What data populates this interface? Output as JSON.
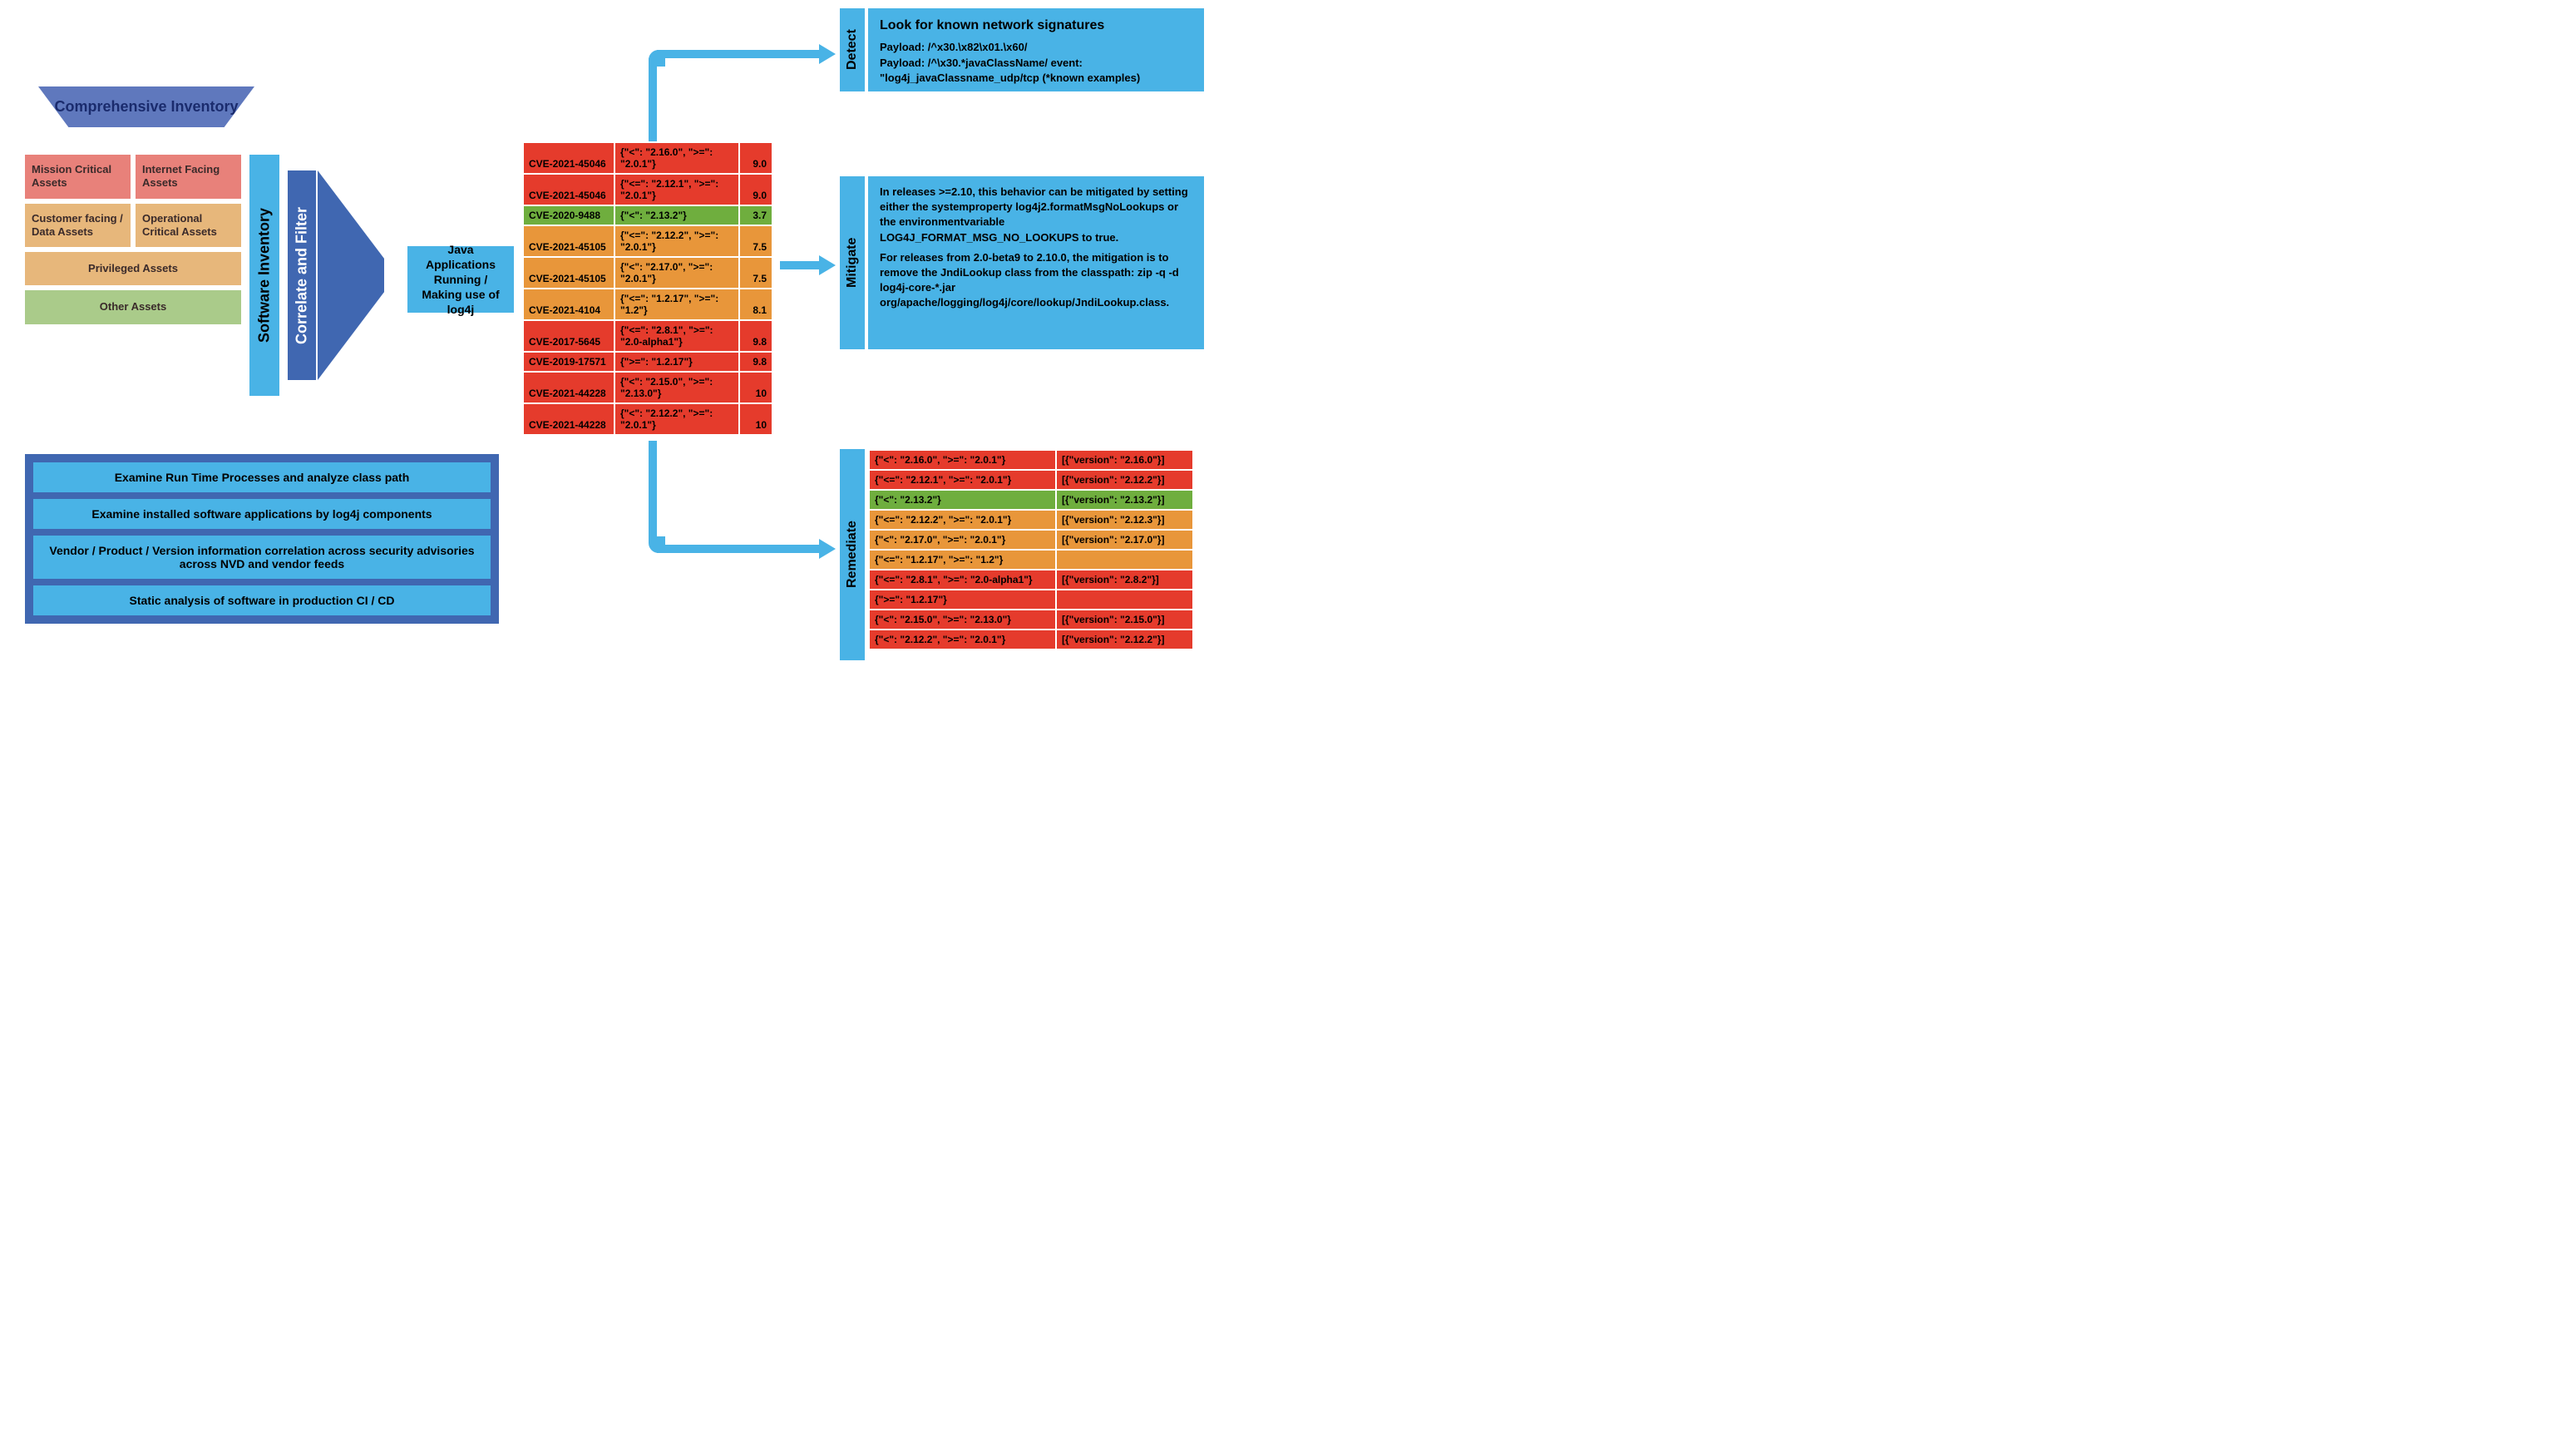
{
  "colors": {
    "blue_dark": "#4067b1",
    "blue_light": "#49b3e6",
    "red": "#e53b2c",
    "orange": "#e8963a",
    "green_row": "#6fae3e",
    "tile_red": "#e8817a",
    "tile_tan": "#e7b77b",
    "tile_green": "#aacb8a"
  },
  "trapezoid": "Comprehensive Inventory",
  "assets": {
    "a1": "Mission Critical Assets",
    "a2": "Internet Facing Assets",
    "a3": "Customer facing / Data Assets",
    "a4": "Operational Critical Assets",
    "a5": "Privileged Assets",
    "a6": "Other Assets"
  },
  "vbars": {
    "software": "Software Inventory",
    "correlate": "Correlate and Filter",
    "detect": "Detect",
    "mitigate": "Mitigate",
    "remediate": "Remediate"
  },
  "java_box": "Java Applications Running / Making use of log4j",
  "steps": {
    "s1": "Examine Run Time Processes and analyze class path",
    "s2": "Examine installed software applications by log4j components",
    "s3": "Vendor / Product / Version information correlation across security advisories across NVD and vendor feeds",
    "s4": "Static analysis of software in production CI / CD"
  },
  "cve_rows": [
    {
      "cls": "red",
      "id": "CVE-2021-45046",
      "ver": "{\"<\": \"2.16.0\", \">=\": \"2.0.1\"}",
      "score": "9.0"
    },
    {
      "cls": "red",
      "id": "CVE-2021-45046",
      "ver": "{\"<=\": \"2.12.1\", \">=\": \"2.0.1\"}",
      "score": "9.0"
    },
    {
      "cls": "green",
      "id": "CVE-2020-9488",
      "ver": "{\"<\": \"2.13.2\"}",
      "score": "3.7"
    },
    {
      "cls": "orange",
      "id": "CVE-2021-45105",
      "ver": "{\"<=\": \"2.12.2\", \">=\": \"2.0.1\"}",
      "score": "7.5"
    },
    {
      "cls": "orange",
      "id": "CVE-2021-45105",
      "ver": "{\"<\": \"2.17.0\", \">=\": \"2.0.1\"}",
      "score": "7.5"
    },
    {
      "cls": "orange",
      "id": "CVE-2021-4104",
      "ver": "{\"<=\": \"1.2.17\", \">=\": \"1.2\"}",
      "score": "8.1"
    },
    {
      "cls": "red",
      "id": "CVE-2017-5645",
      "ver": "{\"<=\": \"2.8.1\",  \">=\": \"2.0-alpha1\"}",
      "score": "9.8"
    },
    {
      "cls": "red",
      "id": "CVE-2019-17571",
      "ver": "{\">=\": \"1.2.17\"}",
      "score": "9.8"
    },
    {
      "cls": "red",
      "id": "CVE-2021-44228",
      "ver": "{\"<\": \"2.15.0\", \">=\": \"2.13.0\"}",
      "score": "10"
    },
    {
      "cls": "red",
      "id": "CVE-2021-44228",
      "ver": "{\"<\": \"2.12.2\", \">=\": \"2.0.1\"}",
      "score": "10"
    }
  ],
  "remediate_rows": [
    {
      "cls": "red",
      "a": "{\"<\": \"2.16.0\", \">=\": \"2.0.1\"}",
      "b": "[{\"version\": \"2.16.0\"}]"
    },
    {
      "cls": "red",
      "a": "{\"<=\": \"2.12.1\", \">=\": \"2.0.1\"}",
      "b": "[{\"version\": \"2.12.2\"}]"
    },
    {
      "cls": "green",
      "a": "{\"<\": \"2.13.2\"}",
      "b": "[{\"version\": \"2.13.2\"}]"
    },
    {
      "cls": "orange",
      "a": "{\"<=\": \"2.12.2\", \">=\": \"2.0.1\"}",
      "b": "[{\"version\": \"2.12.3\"}]"
    },
    {
      "cls": "orange",
      "a": "{\"<\": \"2.17.0\", \">=\": \"2.0.1\"}",
      "b": "[{\"version\": \"2.17.0\"}]"
    },
    {
      "cls": "orange",
      "a": "{\"<=\": \"1.2.17\", \">=\": \"1.2\"}",
      "b": ""
    },
    {
      "cls": "red",
      "a": "{\"<=\": \"2.8.1\",  \">=\": \"2.0-alpha1\"}",
      "b": "[{\"version\": \"2.8.2\"}]"
    },
    {
      "cls": "red",
      "a": "{\">=\": \"1.2.17\"}",
      "b": ""
    },
    {
      "cls": "red",
      "a": "{\"<\": \"2.15.0\", \">=\": \"2.13.0\"}",
      "b": "[{\"version\": \"2.15.0\"}]"
    },
    {
      "cls": "red",
      "a": "{\"<\": \"2.12.2\", \">=\": \"2.0.1\"}",
      "b": "[{\"version\": \"2.12.2\"}]"
    }
  ],
  "detect": {
    "hdr": "Look for known network signatures",
    "l1": "Payload: /^x30.\\x82\\x01.\\x60/",
    "l2": "Payload: /^\\x30.*javaClassName/ event: \"log4j_javaClassname_udp/tcp (*known examples)"
  },
  "mitigate": {
    "p1": "In releases >=2.10, this behavior can be mitigated by setting either the systemproperty log4j2.formatMsgNoLookups or the environmentvariable LOG4J_FORMAT_MSG_NO_LOOKUPS to true.",
    "p2": "For releases from 2.0-beta9 to 2.10.0, the mitigation is to remove the JndiLookup class from the classpath: zip -q -d log4j-core-*.jar org/apache/logging/log4j/core/lookup/JndiLookup.class."
  }
}
